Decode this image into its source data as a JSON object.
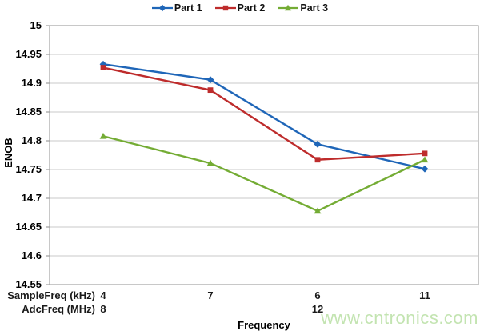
{
  "chart_data": {
    "type": "line",
    "title": "",
    "xlabel": "Frequency",
    "ylabel": "ENOB",
    "ylim": [
      14.55,
      15
    ],
    "grid": true,
    "legend_position": "top",
    "y_tick_labels": [
      "15",
      "14.95",
      "14.9",
      "14.85",
      "14.8",
      "14.75",
      "14.7",
      "14.65",
      "14.6",
      "14.55"
    ],
    "x_axis": {
      "rows": [
        {
          "label": "SampleFreq (kHz)",
          "values": [
            "4",
            "7",
            "6",
            "11"
          ]
        },
        {
          "label": "AdcFreq (MHz)",
          "values": [
            "8",
            "",
            "12",
            ""
          ]
        }
      ]
    },
    "series": [
      {
        "name": "Part 1",
        "marker": "diamond",
        "color": "#1F66B8",
        "values": [
          14.933,
          14.906,
          14.794,
          14.751
        ]
      },
      {
        "name": "Part 2",
        "marker": "square",
        "color": "#BE2C2C",
        "values": [
          14.927,
          14.888,
          14.767,
          14.778
        ]
      },
      {
        "name": "Part 3",
        "marker": "triangle",
        "color": "#74AC34",
        "values": [
          14.808,
          14.761,
          14.678,
          14.767
        ]
      }
    ]
  },
  "watermark": {
    "text": "www.cntronics.com",
    "color": "#c3e4b1"
  },
  "colors": {
    "gridline": "#C8C8C8",
    "border": "#A3A3A3",
    "tick": "#8A8A8A"
  }
}
